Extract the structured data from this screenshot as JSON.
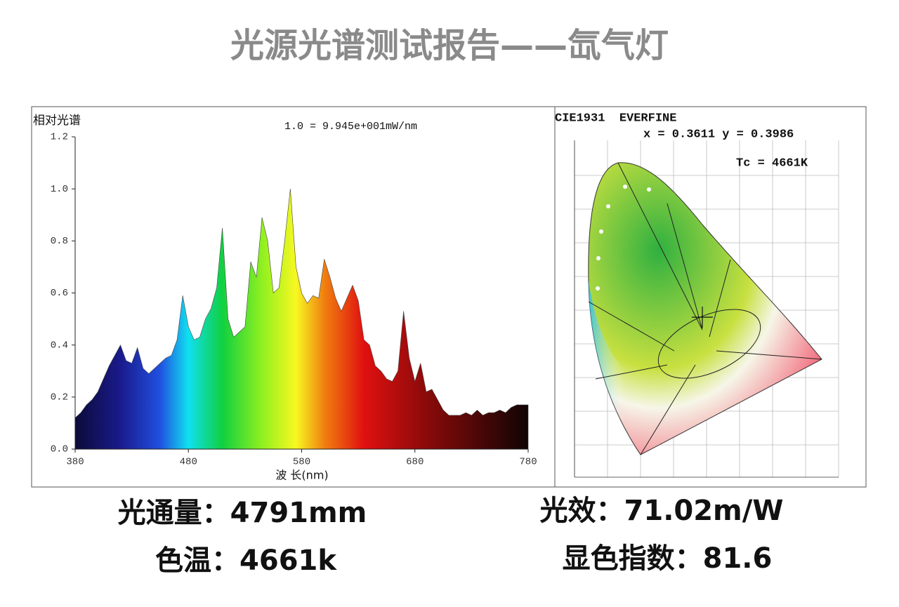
{
  "title": "光源光谱测试报告——氙气灯",
  "chart_data": {
    "type": "area",
    "y_label": "相对光谱",
    "annotation": "1.0 = 9.945e+001mW/nm",
    "x_label": "波 长(nm)",
    "x": [
      380,
      385,
      390,
      395,
      400,
      405,
      410,
      415,
      420,
      425,
      430,
      435,
      440,
      445,
      450,
      455,
      460,
      465,
      470,
      475,
      480,
      485,
      490,
      495,
      500,
      505,
      510,
      515,
      520,
      525,
      530,
      535,
      540,
      545,
      550,
      555,
      560,
      565,
      570,
      575,
      580,
      585,
      590,
      595,
      600,
      605,
      610,
      615,
      620,
      625,
      630,
      635,
      640,
      645,
      650,
      655,
      660,
      665,
      670,
      675,
      680,
      685,
      690,
      695,
      700,
      705,
      710,
      715,
      720,
      725,
      730,
      735,
      740,
      745,
      750,
      755,
      760,
      765,
      770,
      775,
      780
    ],
    "values": [
      0.12,
      0.14,
      0.17,
      0.19,
      0.22,
      0.27,
      0.32,
      0.36,
      0.4,
      0.34,
      0.33,
      0.39,
      0.31,
      0.29,
      0.31,
      0.33,
      0.35,
      0.36,
      0.42,
      0.59,
      0.47,
      0.42,
      0.43,
      0.5,
      0.54,
      0.62,
      0.85,
      0.5,
      0.43,
      0.45,
      0.47,
      0.72,
      0.66,
      0.89,
      0.8,
      0.6,
      0.62,
      0.8,
      1.0,
      0.7,
      0.6,
      0.56,
      0.59,
      0.58,
      0.73,
      0.66,
      0.58,
      0.53,
      0.58,
      0.63,
      0.57,
      0.42,
      0.4,
      0.32,
      0.3,
      0.27,
      0.26,
      0.3,
      0.53,
      0.35,
      0.26,
      0.33,
      0.22,
      0.23,
      0.19,
      0.15,
      0.13,
      0.13,
      0.13,
      0.14,
      0.13,
      0.15,
      0.13,
      0.14,
      0.14,
      0.15,
      0.14,
      0.16,
      0.17,
      0.17,
      0.17
    ],
    "color_stops": [
      {
        "at": 380,
        "color": "#0b0b3a"
      },
      {
        "at": 420,
        "color": "#1a1a8c"
      },
      {
        "at": 455,
        "color": "#2050e0"
      },
      {
        "at": 480,
        "color": "#10e0f0"
      },
      {
        "at": 510,
        "color": "#10d040"
      },
      {
        "at": 545,
        "color": "#90f020"
      },
      {
        "at": 575,
        "color": "#f8f820"
      },
      {
        "at": 600,
        "color": "#f08010"
      },
      {
        "at": 635,
        "color": "#e01010"
      },
      {
        "at": 690,
        "color": "#8a0a0a"
      },
      {
        "at": 780,
        "color": "#100404"
      }
    ],
    "xlim": [
      380,
      780
    ],
    "xticks": [
      380,
      480,
      580,
      680,
      780
    ],
    "ylim": [
      0,
      1.2
    ],
    "yticks": [
      {
        "value": 0,
        "label": "0.0"
      },
      0.2,
      0.4,
      0.6,
      0.8,
      {
        "value": 1,
        "label": "1.0"
      },
      1.2
    ]
  },
  "cie": {
    "header": "CIE1931  EVERFINE",
    "coordinates": "x = 0.3611 y = 0.3986",
    "cct": "Tc = 4661K"
  },
  "metrics": [
    "光通量：4791mm",
    "光效：71.02m/W",
    "色温：4661k",
    "显色指数：81.6"
  ]
}
